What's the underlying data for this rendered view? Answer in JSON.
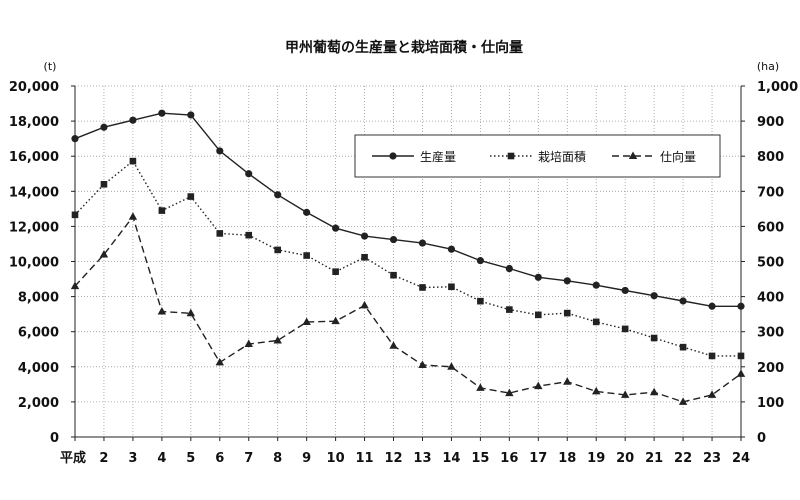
{
  "chart_data": {
    "type": "line",
    "title": "甲州葡萄の生産量と栽培面積・仕向量",
    "left_unit": "(t)",
    "right_unit": "(ha)",
    "ylim_left": [
      0,
      20000
    ],
    "ylim_right": [
      0,
      1000
    ],
    "y_ticks_left": [
      "0",
      "2,000",
      "4,000",
      "6,000",
      "8,000",
      "10,000",
      "12,000",
      "14,000",
      "16,000",
      "18,000",
      "20,000"
    ],
    "y_ticks_right": [
      "0",
      "100",
      "200",
      "300",
      "400",
      "500",
      "600",
      "700",
      "800",
      "900",
      "1,000"
    ],
    "categories": [
      "平成",
      "2",
      "3",
      "4",
      "5",
      "6",
      "7",
      "8",
      "9",
      "10",
      "11",
      "12",
      "13",
      "14",
      "15",
      "16",
      "17",
      "18",
      "19",
      "20",
      "21",
      "22",
      "23",
      "24"
    ],
    "grid": true,
    "legend_position": "top-right",
    "series": [
      {
        "name": "生産量",
        "axis": "left",
        "style": "solid",
        "marker": "circle",
        "values": [
          17000,
          17650,
          18050,
          18450,
          18350,
          16300,
          15000,
          13800,
          12800,
          11900,
          11450,
          11250,
          11050,
          10700,
          10050,
          9600,
          9100,
          8900,
          8650,
          8350,
          8050,
          7750,
          7450,
          7450
        ]
      },
      {
        "name": "栽培面積",
        "axis": "right",
        "style": "dotted",
        "marker": "square",
        "values": [
          633,
          720,
          786,
          645,
          685,
          580,
          575,
          533,
          517,
          471,
          512,
          461,
          426,
          428,
          387,
          363,
          348,
          353,
          328,
          308,
          282,
          256,
          231,
          231
        ]
      },
      {
        "name": "仕向量",
        "axis": "left",
        "style": "dashed",
        "marker": "triangle",
        "values": [
          8600,
          10400,
          12550,
          7150,
          7050,
          4250,
          5300,
          5500,
          6550,
          6600,
          7500,
          5200,
          4100,
          4000,
          2800,
          2500,
          2900,
          3150,
          2600,
          2400,
          2550,
          2000,
          2400,
          3600
        ]
      }
    ]
  }
}
